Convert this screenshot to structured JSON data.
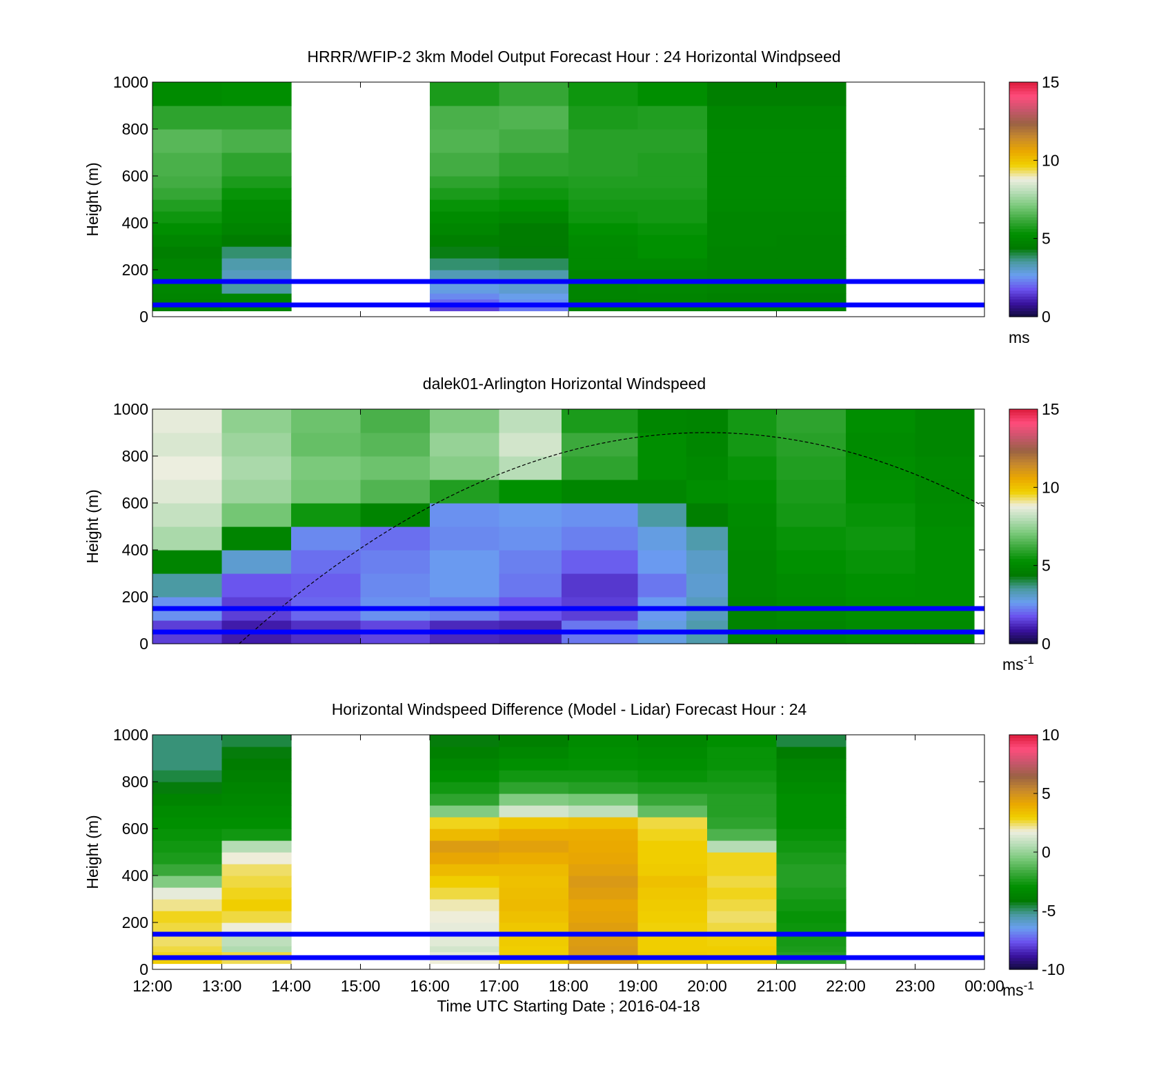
{
  "figure": {
    "xlabel": "Time UTC  Starting Date ; 2016-04-18",
    "time_ticks": [
      "12:00",
      "13:00",
      "14:00",
      "15:00",
      "16:00",
      "17:00",
      "18:00",
      "19:00",
      "20:00",
      "21:00",
      "22:00",
      "23:00",
      "00:00"
    ],
    "height_ticks": [
      "0",
      "200",
      "400",
      "600",
      "800",
      "1000"
    ]
  },
  "colors": {
    "scale": [
      "#120c3c",
      "#3a12a0",
      "#6a52ee",
      "#6a9ef0",
      "#4a9aa0",
      "#007a00",
      "#009000",
      "#3aa83a",
      "#78c878",
      "#b4dcb4",
      "#eeeee0",
      "#f0d000",
      "#eaa800",
      "#c88a2c",
      "#9a6244",
      "#c8566c",
      "#ff4c7c",
      "#dc1c3c"
    ],
    "reference_line": "#0000ff",
    "gridline": "#000000"
  },
  "chart_data": [
    {
      "type": "heatmap",
      "title": "HRRR/WFIP-2 3km Model Output   Forecast Hour : 24 Horizontal Windpseed",
      "ylabel": "Height (m)",
      "xlim": [
        "12:00",
        "00:00"
      ],
      "ylim": [
        0,
        1000
      ],
      "colorbar": {
        "range": [
          0,
          15
        ],
        "ticks": [
          "0",
          "5",
          "10",
          "15"
        ],
        "unit": "ms",
        "unit_sup": ""
      },
      "reference_lines_m": [
        150,
        50
      ],
      "x_edges_hours": [
        12,
        13,
        14,
        15,
        16,
        17,
        18,
        19,
        20,
        21,
        22
      ],
      "y_edges_m": [
        25,
        50,
        75,
        100,
        150,
        200,
        250,
        300,
        350,
        400,
        450,
        500,
        550,
        600,
        700,
        800,
        900,
        1000
      ],
      "values": [
        [
          4.6,
          4.8,
          null,
          null,
          1.5,
          2.2,
          4.7,
          4.7,
          4.7,
          4.7
        ],
        [
          4.7,
          4.8,
          null,
          null,
          2.0,
          2.5,
          4.7,
          4.8,
          4.7,
          4.7
        ],
        [
          4.8,
          4.9,
          null,
          null,
          2.4,
          2.7,
          4.8,
          4.8,
          4.7,
          4.7
        ],
        [
          4.9,
          3.5,
          null,
          null,
          2.8,
          3.0,
          4.8,
          4.9,
          4.8,
          4.8
        ],
        [
          5.0,
          3.2,
          null,
          null,
          3.3,
          3.4,
          4.9,
          4.9,
          4.8,
          4.8
        ],
        [
          4.8,
          3.4,
          null,
          null,
          3.8,
          3.9,
          5.0,
          5.0,
          4.8,
          4.8
        ],
        [
          4.6,
          3.8,
          null,
          null,
          4.3,
          4.4,
          5.0,
          5.3,
          4.8,
          4.8
        ],
        [
          4.9,
          4.5,
          null,
          null,
          4.6,
          4.5,
          5.1,
          5.3,
          4.9,
          4.8
        ],
        [
          5.2,
          4.8,
          null,
          null,
          4.9,
          4.5,
          5.3,
          5.4,
          4.9,
          4.9
        ],
        [
          5.5,
          5.0,
          null,
          null,
          5.1,
          4.9,
          5.5,
          5.6,
          4.9,
          4.9
        ],
        [
          5.8,
          5.1,
          null,
          null,
          5.4,
          5.3,
          5.6,
          5.6,
          5.0,
          5.0
        ],
        [
          6.1,
          5.4,
          null,
          null,
          5.7,
          5.5,
          5.7,
          5.7,
          5.0,
          5.0
        ],
        [
          6.3,
          5.7,
          null,
          null,
          6.0,
          5.7,
          5.8,
          5.8,
          5.0,
          5.0
        ],
        [
          6.4,
          6.0,
          null,
          null,
          6.3,
          6.0,
          5.9,
          5.8,
          5.0,
          5.0
        ],
        [
          6.6,
          6.4,
          null,
          null,
          6.5,
          6.3,
          5.9,
          5.9,
          5.0,
          5.0
        ],
        [
          6.0,
          6.0,
          null,
          null,
          6.4,
          6.5,
          5.7,
          5.8,
          4.9,
          4.9
        ],
        [
          5.1,
          5.2,
          null,
          null,
          5.7,
          6.1,
          5.5,
          5.2,
          4.6,
          4.6
        ],
        [
          4.6,
          5.1,
          null,
          null,
          5.0,
          5.6,
          4.8,
          4.8,
          3.4,
          3.8
        ]
      ]
    },
    {
      "type": "heatmap",
      "title": "dalek01-Arlington  Horizontal Windspeed",
      "ylabel": "Height (m)",
      "xlim": [
        "12:00",
        "00:00"
      ],
      "ylim": [
        0,
        1000
      ],
      "colorbar": {
        "range": [
          0,
          15
        ],
        "ticks": [
          "0",
          "5",
          "10",
          "15"
        ],
        "unit": "ms",
        "unit_sup": "-1"
      },
      "reference_lines_m": [
        150,
        50
      ],
      "overlay_curve": {
        "style": "dashed",
        "peak_hour": 20,
        "peak_m": 900,
        "start_hour": 13.25,
        "end_hour": 24
      },
      "x_edges_hours": [
        12,
        13,
        14,
        15,
        16,
        17,
        17.9,
        19,
        19.7,
        20.3,
        21,
        22,
        23,
        23.85
      ],
      "y_bands_m": [
        0,
        100,
        200,
        300,
        400,
        500,
        600,
        700,
        800,
        900,
        1000
      ],
      "values": [
        [
          1.5,
          1.0,
          1.3,
          1.6,
          1.2,
          1.1,
          2.2,
          2.8,
          3.4,
          4.8,
          4.9,
          5.1,
          5.1
        ],
        [
          2.5,
          1.5,
          2.0,
          2.5,
          2.3,
          1.8,
          1.5,
          2.6,
          3.2,
          4.8,
          5.0,
          5.2,
          5.2
        ],
        [
          3.5,
          1.8,
          1.9,
          2.4,
          2.6,
          2.2,
          1.4,
          2.2,
          3.0,
          4.9,
          5.1,
          5.3,
          5.2
        ],
        [
          4.8,
          3.0,
          2.1,
          2.3,
          2.6,
          2.3,
          1.9,
          2.6,
          3.1,
          4.9,
          5.3,
          5.4,
          5.2
        ],
        [
          7.8,
          4.8,
          2.4,
          2.1,
          2.4,
          2.5,
          2.3,
          2.8,
          3.4,
          5.0,
          5.4,
          5.5,
          5.2
        ],
        [
          8.2,
          7.0,
          5.5,
          4.8,
          2.5,
          2.6,
          2.5,
          3.5,
          4.6,
          5.1,
          5.6,
          5.4,
          5.1
        ],
        [
          8.6,
          7.6,
          7.0,
          6.5,
          5.8,
          5.3,
          4.9,
          4.9,
          5.2,
          5.3,
          5.7,
          5.3,
          5.0
        ],
        [
          8.8,
          7.8,
          7.1,
          6.9,
          7.3,
          8.0,
          6.0,
          5.2,
          5.0,
          5.4,
          5.8,
          5.2,
          5.0
        ],
        [
          8.5,
          7.6,
          6.8,
          6.6,
          7.5,
          8.4,
          6.2,
          5.2,
          4.9,
          5.6,
          5.9,
          5.1,
          4.9
        ],
        [
          8.7,
          7.4,
          6.9,
          6.4,
          7.2,
          8.1,
          5.7,
          4.9,
          4.8,
          5.6,
          6.0,
          5.2,
          4.9
        ]
      ]
    },
    {
      "type": "heatmap",
      "title": "Horizontal Windspeed Difference (Model - Lidar) Forecast Hour : 24",
      "ylabel": "Height (m)",
      "xlim": [
        "12:00",
        "00:00"
      ],
      "ylim": [
        0,
        1000
      ],
      "colorbar": {
        "range": [
          -10,
          10
        ],
        "ticks": [
          "-10",
          "-5",
          "0",
          "5",
          "10"
        ],
        "unit": "ms",
        "unit_sup": "-1"
      },
      "reference_lines_m": [
        150,
        50
      ],
      "x_edges_hours": [
        12,
        13,
        14,
        15,
        16,
        17,
        18,
        19,
        20,
        21,
        22
      ],
      "y_edges_m": [
        25,
        50,
        75,
        100,
        150,
        200,
        250,
        300,
        350,
        400,
        450,
        500,
        550,
        600,
        650,
        700,
        750,
        800,
        850,
        900,
        950,
        1000
      ],
      "values": [
        [
          3.0,
          2.5,
          null,
          null,
          1.8,
          3.0,
          4.6,
          3.2,
          3.0,
          -2.0
        ],
        [
          2.8,
          2.6,
          null,
          null,
          1.6,
          3.0,
          4.7,
          3.1,
          3.0,
          -2.2
        ],
        [
          2.6,
          0.5,
          null,
          null,
          1.2,
          3.0,
          4.7,
          3.0,
          3.0,
          -2.4
        ],
        [
          2.4,
          0.8,
          null,
          null,
          1.5,
          3.1,
          4.6,
          3.0,
          2.9,
          -2.5
        ],
        [
          2.6,
          1.8,
          null,
          null,
          1.6,
          3.2,
          4.5,
          2.9,
          2.6,
          -2.7
        ],
        [
          2.8,
          2.6,
          null,
          null,
          1.8,
          3.4,
          4.3,
          3.0,
          2.4,
          -2.8
        ],
        [
          2.2,
          3.0,
          null,
          null,
          2.0,
          3.6,
          4.2,
          3.1,
          2.6,
          -2.6
        ],
        [
          1.6,
          2.8,
          null,
          null,
          2.6,
          3.5,
          4.5,
          3.2,
          2.8,
          -2.4
        ],
        [
          -0.4,
          2.6,
          null,
          null,
          3.0,
          3.4,
          4.7,
          3.4,
          2.6,
          -2.2
        ],
        [
          -1.8,
          2.4,
          null,
          null,
          3.6,
          3.6,
          4.4,
          3.1,
          2.8,
          -2.2
        ],
        [
          -2.4,
          1.8,
          null,
          null,
          4.2,
          4.0,
          4.2,
          3.0,
          2.8,
          -2.4
        ],
        [
          -2.6,
          0.6,
          null,
          null,
          4.6,
          4.4,
          4.1,
          3.0,
          0.6,
          -2.6
        ],
        [
          -2.8,
          -2.6,
          null,
          null,
          3.6,
          4.0,
          4.0,
          2.8,
          -1.4,
          -2.8
        ],
        [
          -3.0,
          -3.0,
          null,
          null,
          2.8,
          3.2,
          3.4,
          2.6,
          -2.0,
          -3.0
        ],
        [
          -3.2,
          -3.2,
          null,
          null,
          -0.4,
          1.2,
          0.8,
          -1.0,
          -2.2,
          -3.0
        ],
        [
          -3.6,
          -3.4,
          null,
          null,
          -2.0,
          -0.4,
          -0.6,
          -1.8,
          -2.2,
          -3.0
        ],
        [
          -4.2,
          -3.6,
          null,
          null,
          -2.6,
          -2.0,
          -2.2,
          -2.4,
          -2.4,
          -3.2
        ],
        [
          -4.6,
          -3.8,
          null,
          null,
          -3.0,
          -2.6,
          -2.6,
          -2.8,
          -2.6,
          -3.4
        ],
        [
          -5.0,
          -4.0,
          null,
          null,
          -3.4,
          -3.0,
          -2.9,
          -3.0,
          -2.8,
          -3.6
        ],
        [
          -5.0,
          -4.2,
          null,
          null,
          -3.8,
          -3.4,
          -3.0,
          -3.2,
          -2.8,
          -4.0
        ],
        [
          -5.0,
          -4.6,
          null,
          null,
          -4.2,
          -3.8,
          -3.2,
          -3.4,
          -3.0,
          -4.6
        ]
      ]
    }
  ]
}
